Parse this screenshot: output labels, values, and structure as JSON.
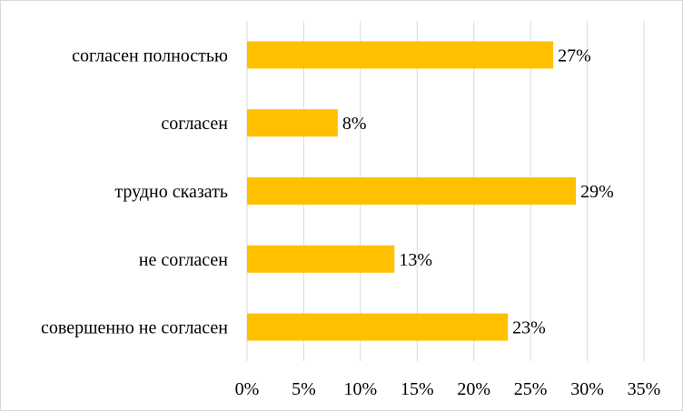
{
  "chart_data": {
    "type": "bar",
    "orientation": "horizontal",
    "categories": [
      "согласен полностью",
      "согласен",
      "трудно сказать",
      "не согласен",
      "совершенно не согласен"
    ],
    "values": [
      27,
      8,
      29,
      13,
      23
    ],
    "data_labels": [
      "27%",
      "8%",
      "29%",
      "13%",
      "23%"
    ],
    "xlim": [
      0,
      35
    ],
    "x_ticks": [
      0,
      5,
      10,
      15,
      20,
      25,
      30,
      35
    ],
    "x_tick_labels": [
      "0%",
      "5%",
      "10%",
      "15%",
      "20%",
      "25%",
      "30%",
      "35%"
    ],
    "bar_color": "#FFC000",
    "grid_color": "#D9D9D9",
    "grid": true,
    "legend": "none",
    "title": "",
    "xlabel": "",
    "ylabel": ""
  }
}
